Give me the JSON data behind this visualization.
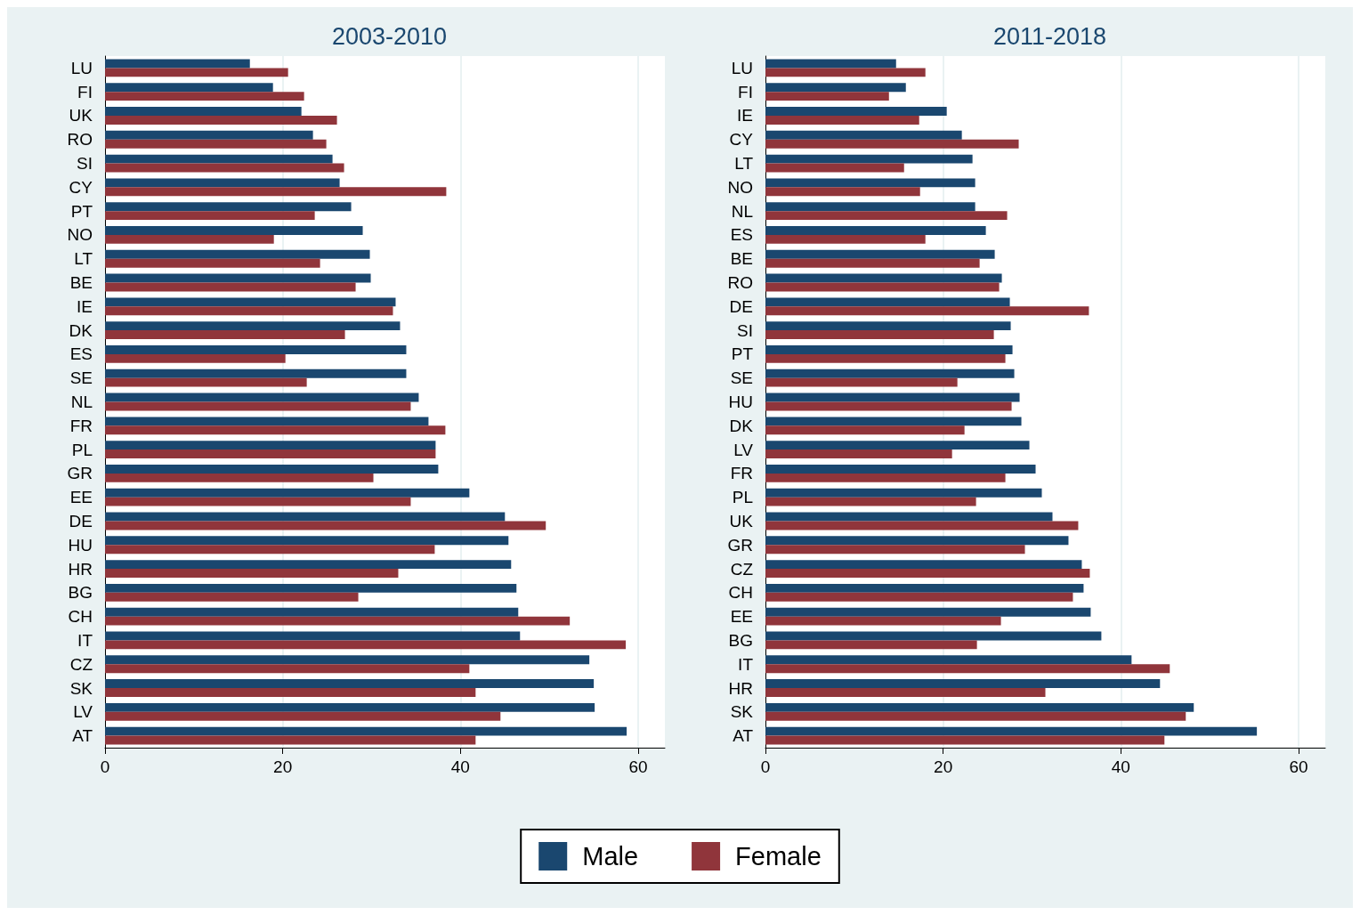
{
  "chart_data": [
    {
      "type": "bar",
      "orientation": "horizontal",
      "title": "2003-2010",
      "categories": [
        "LU",
        "FI",
        "UK",
        "RO",
        "SI",
        "CY",
        "PT",
        "NO",
        "LT",
        "BE",
        "IE",
        "DK",
        "ES",
        "SE",
        "NL",
        "FR",
        "PL",
        "GR",
        "EE",
        "DE",
        "HU",
        "HR",
        "BG",
        "CH",
        "IT",
        "CZ",
        "SK",
        "LV",
        "AT"
      ],
      "series": [
        {
          "name": "Male",
          "color": "#1a476f",
          "values": [
            16.3,
            18.9,
            22.1,
            23.4,
            25.6,
            26.4,
            27.7,
            29.0,
            29.8,
            29.9,
            32.7,
            33.2,
            33.9,
            33.9,
            35.3,
            36.4,
            37.2,
            37.5,
            41.0,
            45.0,
            45.4,
            45.7,
            46.3,
            46.5,
            46.7,
            54.5,
            55.0,
            55.1,
            58.7
          ]
        },
        {
          "name": "Female",
          "color": "#90353b",
          "values": [
            20.6,
            22.4,
            26.1,
            24.9,
            26.9,
            38.4,
            23.6,
            19.0,
            24.2,
            28.2,
            32.4,
            27.0,
            20.3,
            22.7,
            34.4,
            38.3,
            37.2,
            30.2,
            34.4,
            49.6,
            37.1,
            33.0,
            28.5,
            52.3,
            58.6,
            41.0,
            41.7,
            44.5,
            41.7
          ]
        }
      ],
      "xlim": [
        0,
        63
      ],
      "xticks": [
        0,
        20,
        40,
        60
      ],
      "grid": "x",
      "legend": "bottom"
    },
    {
      "type": "bar",
      "orientation": "horizontal",
      "title": "2011-2018",
      "categories": [
        "LU",
        "FI",
        "IE",
        "CY",
        "LT",
        "NO",
        "NL",
        "ES",
        "BE",
        "RO",
        "DE",
        "SI",
        "PT",
        "SE",
        "HU",
        "DK",
        "LV",
        "FR",
        "PL",
        "UK",
        "GR",
        "CZ",
        "CH",
        "EE",
        "BG",
        "IT",
        "HR",
        "SK",
        "AT"
      ],
      "series": [
        {
          "name": "Male",
          "color": "#1a476f",
          "values": [
            14.7,
            15.8,
            20.4,
            22.1,
            23.3,
            23.6,
            23.6,
            24.8,
            25.8,
            26.6,
            27.5,
            27.6,
            27.8,
            28.0,
            28.6,
            28.8,
            29.7,
            30.4,
            31.1,
            32.3,
            34.1,
            35.6,
            35.8,
            36.6,
            37.8,
            41.2,
            44.4,
            48.2,
            55.3
          ]
        },
        {
          "name": "Female",
          "color": "#90353b",
          "values": [
            18.0,
            13.9,
            17.3,
            28.5,
            15.6,
            17.4,
            27.2,
            18.0,
            24.1,
            26.3,
            36.4,
            25.7,
            27.0,
            21.6,
            27.7,
            22.4,
            21.0,
            27.0,
            23.7,
            35.2,
            29.2,
            36.5,
            34.6,
            26.5,
            23.8,
            45.5,
            31.5,
            47.3,
            44.9
          ]
        }
      ],
      "xlim": [
        0,
        63
      ],
      "xticks": [
        0,
        20,
        40,
        60
      ],
      "grid": "x",
      "legend": "bottom"
    }
  ]
}
